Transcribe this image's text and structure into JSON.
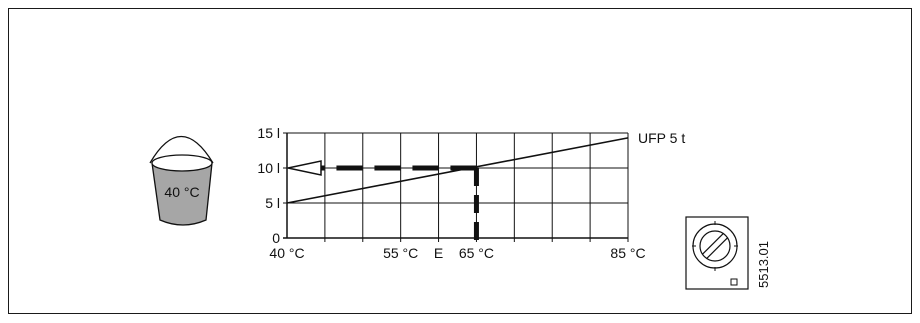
{
  "chart_data": {
    "type": "line",
    "x_ticks": [
      40,
      45,
      50,
      55,
      60,
      65,
      70,
      75,
      80,
      85
    ],
    "x_tick_labels": [
      {
        "x": 40,
        "label": "40 °C"
      },
      {
        "x": 55,
        "label": "55 °C"
      },
      {
        "x": 60,
        "label": "E"
      },
      {
        "x": 65,
        "label": "65 °C"
      },
      {
        "x": 85,
        "label": "85 °C"
      }
    ],
    "y_ticks": [
      0,
      5,
      10,
      15
    ],
    "y_tick_labels": [
      {
        "y": 15,
        "label": "15 l"
      },
      {
        "y": 10,
        "label": "10 l"
      },
      {
        "y": 5,
        "label": "5 l"
      },
      {
        "y": 0,
        "label": "0"
      }
    ],
    "xlim": [
      40,
      85
    ],
    "ylim": [
      0,
      15
    ],
    "grid": true,
    "series": [
      {
        "name": "UFP 5 t",
        "x": [
          40,
          85
        ],
        "y": [
          5,
          14.3
        ]
      }
    ],
    "reading": {
      "x": 65,
      "y": 10
    }
  },
  "bucket": {
    "label": "40 °C",
    "color": "#a6a6a6"
  },
  "dial": {
    "icon": "temperature-dial-icon"
  },
  "figure_code": "5513.01"
}
